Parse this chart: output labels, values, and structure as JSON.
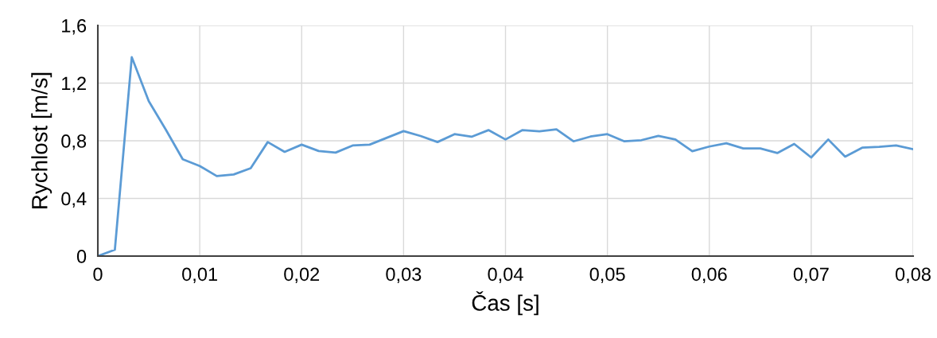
{
  "chart_data": {
    "type": "line",
    "xlabel": "Čas [s]",
    "ylabel": "Rychlost [m/s]",
    "x": [
      0,
      0.00167,
      0.00333,
      0.005,
      0.00667,
      0.00833,
      0.01,
      0.01167,
      0.01333,
      0.015,
      0.01667,
      0.01833,
      0.02,
      0.02167,
      0.02333,
      0.025,
      0.02667,
      0.02833,
      0.03,
      0.03167,
      0.03333,
      0.035,
      0.03667,
      0.03833,
      0.04,
      0.04167,
      0.04333,
      0.045,
      0.04667,
      0.04833,
      0.05,
      0.05167,
      0.05333,
      0.055,
      0.05667,
      0.05833,
      0.06,
      0.06167,
      0.06333,
      0.065,
      0.06667,
      0.06833,
      0.07,
      0.07167,
      0.07333,
      0.075,
      0.07667,
      0.07833,
      0.08
    ],
    "series": [
      {
        "color": "#5b9bd5",
        "values": [
          0,
          0.044,
          1.38,
          1.074,
          0.877,
          0.672,
          0.625,
          0.555,
          0.566,
          0.61,
          0.791,
          0.723,
          0.773,
          0.729,
          0.718,
          0.767,
          0.773,
          0.82,
          0.867,
          0.833,
          0.791,
          0.846,
          0.828,
          0.874,
          0.809,
          0.874,
          0.866,
          0.879,
          0.796,
          0.829,
          0.846,
          0.796,
          0.804,
          0.834,
          0.809,
          0.728,
          0.76,
          0.783,
          0.747,
          0.747,
          0.715,
          0.778,
          0.684,
          0.809,
          0.69,
          0.752,
          0.758,
          0.767,
          0.741
        ]
      }
    ],
    "xlim": [
      0,
      0.08
    ],
    "ylim": [
      0,
      1.6
    ],
    "xticks": [
      0,
      {
        "value": 0.01,
        "label": "0,01"
      },
      {
        "value": 0.02,
        "label": "0,02"
      },
      {
        "value": 0.03,
        "label": "0,03"
      },
      {
        "value": 0.04,
        "label": "0,04"
      },
      {
        "value": 0.05,
        "label": "0,05"
      },
      {
        "value": 0.06,
        "label": "0,06"
      },
      {
        "value": 0.07,
        "label": "0,07"
      },
      {
        "value": 0.08,
        "label": "0,08"
      }
    ],
    "yticks": [
      0,
      {
        "value": 0.4,
        "label": "0,4"
      },
      {
        "value": 0.8,
        "label": "0,8"
      },
      {
        "value": 1.2,
        "label": "1,2"
      },
      {
        "value": 1.6,
        "label": "1,6"
      }
    ],
    "grid": true,
    "marker": "none",
    "line_style": "solid"
  }
}
